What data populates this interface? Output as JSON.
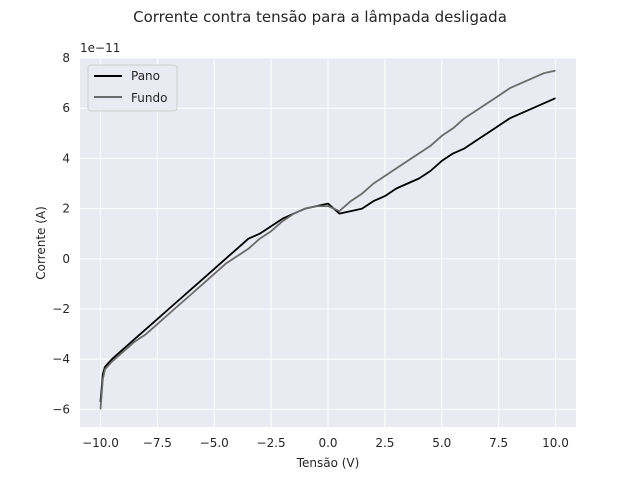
{
  "chart_data": {
    "type": "line",
    "title": "Corrente contra tensão para a lâmpada desligada",
    "xlabel": "Tensão (V)",
    "ylabel": "Corrente (A)",
    "offset_text": "1e−11",
    "xlim": [
      -10.9,
      10.9
    ],
    "ylim": [
      -6.7,
      8.0
    ],
    "xticks": [
      -10.0,
      -7.5,
      -5.0,
      -2.5,
      0.0,
      2.5,
      5.0,
      7.5,
      10.0
    ],
    "xtick_labels": [
      "−10.0",
      "−7.5",
      "−5.0",
      "−2.5",
      "0.0",
      "2.5",
      "5.0",
      "7.5",
      "10.0"
    ],
    "yticks": [
      -6,
      -4,
      -2,
      0,
      2,
      4,
      6,
      8
    ],
    "ytick_labels": [
      "−6",
      "−4",
      "−2",
      "0",
      "2",
      "4",
      "6",
      "8"
    ],
    "grid": true,
    "legend": "top-left",
    "series": [
      {
        "name": "Pano",
        "color": "#000000",
        "x": [
          -10.0,
          -9.9,
          -9.8,
          -9.5,
          -9.0,
          -8.5,
          -8.0,
          -7.5,
          -7.0,
          -6.5,
          -6.0,
          -5.5,
          -5.0,
          -4.5,
          -4.0,
          -3.5,
          -3.0,
          -2.5,
          -2.0,
          -1.5,
          -1.0,
          -0.5,
          0.0,
          0.5,
          1.0,
          1.5,
          2.0,
          2.5,
          3.0,
          3.5,
          4.0,
          4.5,
          5.0,
          5.5,
          6.0,
          6.5,
          7.0,
          7.5,
          8.0,
          8.5,
          9.0,
          9.5,
          10.0
        ],
        "y": [
          -5.7,
          -4.6,
          -4.3,
          -4.0,
          -3.6,
          -3.2,
          -2.8,
          -2.4,
          -2.0,
          -1.6,
          -1.2,
          -0.8,
          -0.4,
          0.0,
          0.4,
          0.8,
          1.0,
          1.3,
          1.6,
          1.8,
          2.0,
          2.1,
          2.2,
          1.8,
          1.9,
          2.0,
          2.3,
          2.5,
          2.8,
          3.0,
          3.2,
          3.5,
          3.9,
          4.2,
          4.4,
          4.7,
          5.0,
          5.3,
          5.6,
          5.8,
          6.0,
          6.2,
          6.4
        ]
      },
      {
        "name": "Fundo",
        "color": "#6b6b6b",
        "x": [
          -10.0,
          -9.9,
          -9.8,
          -9.5,
          -9.0,
          -8.5,
          -8.0,
          -7.5,
          -7.0,
          -6.5,
          -6.0,
          -5.5,
          -5.0,
          -4.5,
          -4.0,
          -3.5,
          -3.0,
          -2.5,
          -2.0,
          -1.5,
          -1.0,
          -0.5,
          0.0,
          0.5,
          1.0,
          1.5,
          2.0,
          2.5,
          3.0,
          3.5,
          4.0,
          4.5,
          5.0,
          5.5,
          6.0,
          6.5,
          7.0,
          7.5,
          8.0,
          8.5,
          9.0,
          9.5,
          10.0
        ],
        "y": [
          -6.0,
          -4.8,
          -4.4,
          -4.1,
          -3.7,
          -3.3,
          -3.0,
          -2.6,
          -2.2,
          -1.8,
          -1.4,
          -1.0,
          -0.6,
          -0.2,
          0.1,
          0.4,
          0.8,
          1.1,
          1.5,
          1.8,
          2.0,
          2.1,
          2.1,
          1.9,
          2.3,
          2.6,
          3.0,
          3.3,
          3.6,
          3.9,
          4.2,
          4.5,
          4.9,
          5.2,
          5.6,
          5.9,
          6.2,
          6.5,
          6.8,
          7.0,
          7.2,
          7.4,
          7.5
        ]
      }
    ]
  }
}
